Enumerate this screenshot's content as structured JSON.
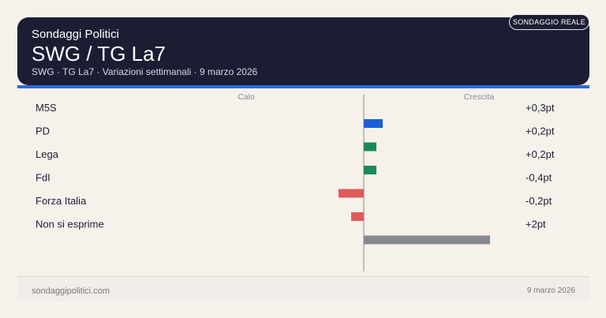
{
  "header": {
    "kicker": "Sondaggi Politici",
    "title": "SWG / TG La7",
    "subtitle": "SWG · TG La7 · Variazioni settimanali · 9 marzo 2026",
    "badge": "SONDAGGIO REALE"
  },
  "footer": {
    "site": "sondaggipolitici.com",
    "date": "9 marzo 2026"
  },
  "colors": {
    "header_bg": "#1c1d33",
    "accent": "#2d6bd9",
    "background": "#f6f1eb"
  },
  "chart_data": {
    "type": "bar",
    "orientation": "horizontal",
    "title": "",
    "xlabel": "",
    "ylabel": "",
    "neg_label": "Calo",
    "pos_label": "Crescita",
    "xlim": [
      -2,
      2
    ],
    "categories": [
      "M5S",
      "PD",
      "Lega",
      "FdI",
      "Forza Italia",
      "Non si esprime"
    ],
    "values": [
      0.3,
      0.2,
      0.2,
      -0.4,
      -0.2,
      2
    ],
    "value_labels": [
      "+0,3pt",
      "+0,2pt",
      "+0,2pt",
      "-0,4pt",
      "-0,2pt",
      "+2pt"
    ],
    "colors": [
      "#1f5fd6",
      "#1a8a5a",
      "#1a8a5a",
      "#e05b5b",
      "#e05b5b",
      "#868990"
    ],
    "grid": false,
    "legend": "none"
  }
}
